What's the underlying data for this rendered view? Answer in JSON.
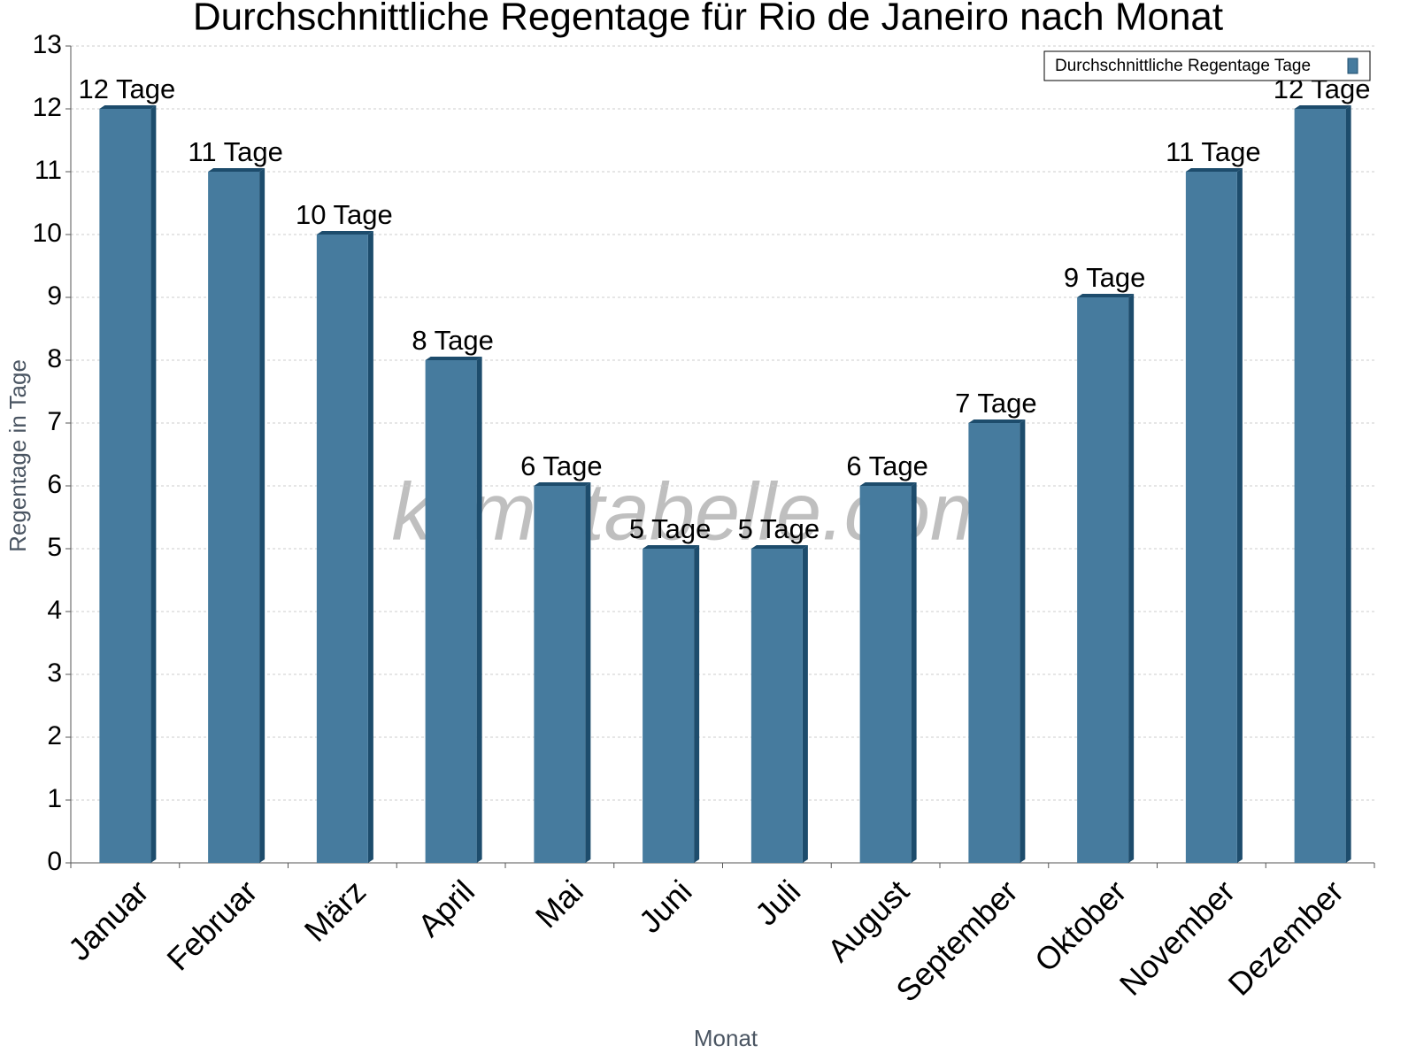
{
  "chart_data": {
    "type": "bar",
    "title": "Durchschnittliche Regentage für Rio de Janeiro nach Monat",
    "x_label": "Monat",
    "y_label": "Regentage in Tage",
    "watermark": "klimatabelle.com",
    "categories": [
      "Januar",
      "Februar",
      "März",
      "April",
      "Mai",
      "Juni",
      "Juli",
      "August",
      "September",
      "Oktober",
      "November",
      "Dezember"
    ],
    "series": [
      {
        "name": "Durchschnittliche Regentage Tage",
        "color": "#467b9e",
        "values": [
          12,
          11,
          10,
          8,
          6,
          5,
          5,
          6,
          7,
          9,
          11,
          12
        ],
        "value_labels": [
          "12 Tage",
          "11 Tage",
          "10 Tage",
          "8 Tage",
          "6 Tage",
          "5 Tage",
          "5 Tage",
          "6 Tage",
          "7 Tage",
          "9 Tage",
          "11 Tage",
          "12 Tage"
        ]
      }
    ],
    "ylim": [
      0,
      13
    ],
    "yticks": [
      0,
      1,
      2,
      3,
      4,
      5,
      6,
      7,
      8,
      9,
      10,
      11,
      12,
      13
    ],
    "grid": true,
    "legend": "top-right"
  }
}
